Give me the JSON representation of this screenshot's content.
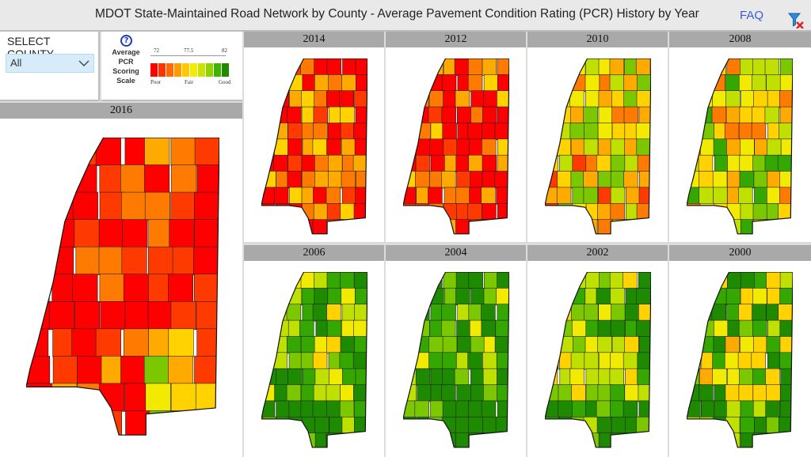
{
  "header": {
    "title": "MDOT State-Maintained Road Network by County - Average Pavement Condition Rating (PCR) History by Year",
    "faq_label": "FAQ"
  },
  "select_county": {
    "title": "SELECT COUNTY",
    "selected": "All"
  },
  "scale": {
    "label_lines": [
      "Average",
      "PCR",
      "Scoring",
      "Scale"
    ],
    "tick_labels": [
      "72",
      "77.5",
      "82"
    ],
    "quality_labels": [
      "Poor",
      "Fair",
      "Good"
    ],
    "colors": [
      "#ff0000",
      "#ff3300",
      "#ff6a00",
      "#ff9a00",
      "#ffc800",
      "#f4ec00",
      "#c8e400",
      "#8fd400",
      "#3fb300",
      "#1f8a00"
    ]
  },
  "icons": {
    "help": "help-circle-icon",
    "filter": "filter-icon",
    "dropdown": "chevron-down-icon"
  },
  "years": {
    "y2016": "2016",
    "y2014": "2014",
    "y2012": "2012",
    "y2010": "2010",
    "y2008": "2008",
    "y2006": "2006",
    "y2004": "2004",
    "y2002": "2002",
    "y2000": "2000"
  }
}
